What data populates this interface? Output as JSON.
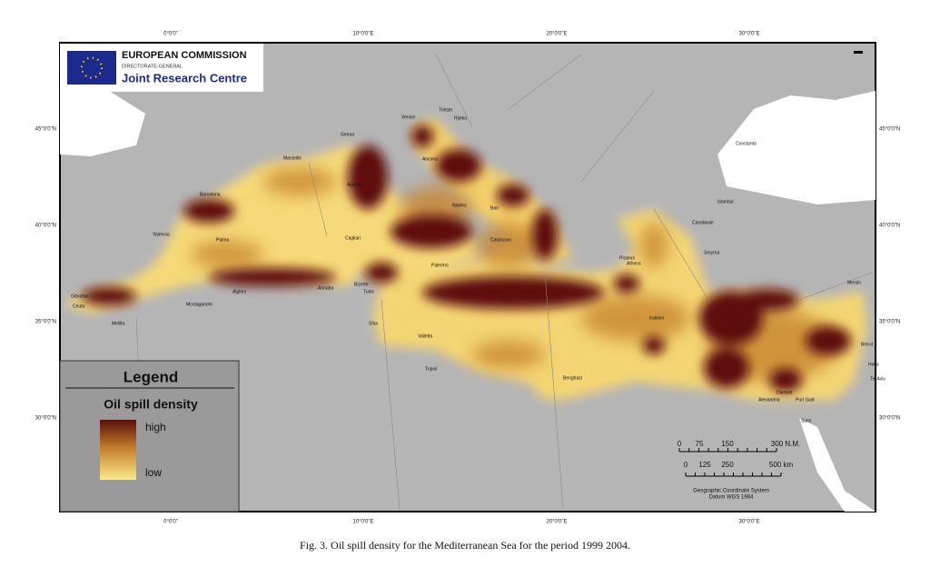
{
  "logo": {
    "title": "EUROPEAN COMMISSION",
    "subtitle": "DIRECTORATE-GENERAL",
    "name": "Joint Research Centre"
  },
  "axes": {
    "top": [
      "0°0'0\"",
      "10°0'0\"E",
      "20°0'0\"E",
      "30°0'0\"E"
    ],
    "bottom": [
      "0°0'0\"",
      "10°0'0\"E",
      "20°0'0\"E",
      "30°0'0\"E"
    ],
    "left": [
      "45°0'0\"N",
      "40°0'0\"N",
      "35°0'0\"N",
      "30°0'0\"N"
    ],
    "right": [
      "45°0'0\"N",
      "40°0'0\"N",
      "35°0'0\"N",
      "30°0'0\"N"
    ]
  },
  "places": [
    "Genoa",
    "Venice",
    "Trieste",
    "Rijeka",
    "Marseille",
    "Ajaccio",
    "Ancona",
    "Barcelona",
    "Naples",
    "Bari",
    "Valencia",
    "Palma",
    "Cagliari",
    "Catanzaro",
    "Palermo",
    "Gibraltar",
    "Ceuta",
    "Melilla",
    "Mostaganem",
    "Algiers",
    "Annaba",
    "Bizerte",
    "Tunis",
    "Sfax",
    "Valletta",
    "Tripoli",
    "Benghazi",
    "Iraklion",
    "Piraeus",
    "Athens",
    "Canakkale",
    "Istanbul",
    "Constanta",
    "Smyrna",
    "Mersin",
    "Beirut",
    "Haifa",
    "Tel Aviv",
    "Port Said",
    "Damyat",
    "Alexandria",
    "Suez"
  ],
  "legend": {
    "title": "Legend",
    "subtitle": "Oil spill density",
    "high": "high",
    "low": "low"
  },
  "scale": {
    "nm": [
      "0",
      "75",
      "150",
      "300 N.M."
    ],
    "km": [
      "0",
      "125",
      "250",
      "500 km"
    ],
    "note": [
      "Geographic Coordinate System",
      "Datum WGS 1984"
    ]
  },
  "caption": "Fig. 3. Oil spill density for the Mediterranean Sea for the period 1999 2004."
}
